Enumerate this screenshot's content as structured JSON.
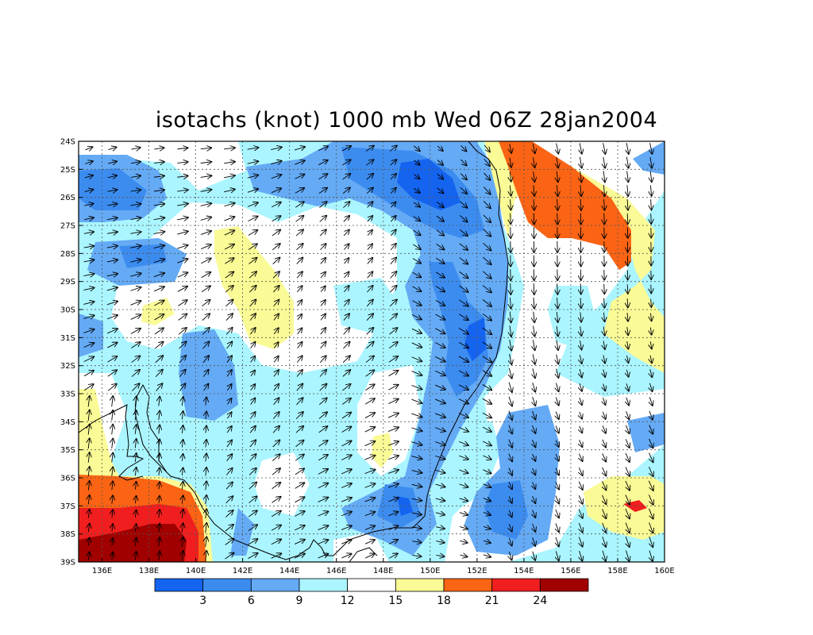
{
  "title": "isotachs (knot) 1000 mb Wed 06Z 28jan2004",
  "map": {
    "lon_range": [
      135,
      160
    ],
    "lat_range": [
      -39,
      -24
    ],
    "lon_ticks": [
      "136E",
      "138E",
      "140E",
      "142E",
      "144E",
      "146E",
      "148E",
      "150E",
      "152E",
      "154E",
      "156E",
      "158E",
      "160E"
    ],
    "lat_ticks": [
      "24S",
      "25S",
      "26S",
      "27S",
      "28S",
      "29S",
      "30S",
      "31S",
      "32S",
      "33S",
      "34S",
      "35S",
      "36S",
      "37S",
      "38S",
      "39S"
    ],
    "grid": "dotted"
  },
  "colorbar": {
    "colors": [
      "#1464f0",
      "#3c8cf0",
      "#64aaf5",
      "#aaf5ff",
      "#ffffff",
      "#fafa96",
      "#fa6414",
      "#f01e1e",
      "#a00000"
    ],
    "labels": [
      "3",
      "6",
      "9",
      "12",
      "15",
      "18",
      "21",
      "24"
    ]
  }
}
